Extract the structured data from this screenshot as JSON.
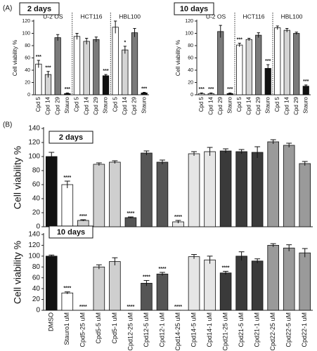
{
  "panels": [
    "(A)",
    "(B)"
  ],
  "chart_data": [
    {
      "type": "bar",
      "title": "2 days",
      "y_label": "Cell viability %",
      "groups": [
        "U-2 OS",
        "HCT116",
        "HBL100"
      ],
      "categories": [
        "Cpd 5",
        "Cpd 14",
        "Cpd 29",
        "Stauro",
        "Cpd 5",
        "Cpd 14",
        "Cpd 29",
        "Stauro",
        "Cpd 5",
        "Cpd 14",
        "Cpd 29",
        "Stauro"
      ],
      "values": [
        50,
        33,
        93,
        2,
        95,
        87,
        90,
        31,
        110,
        73,
        101,
        3
      ],
      "errors": [
        6,
        5,
        5,
        1,
        5,
        5,
        4,
        2,
        10,
        6,
        7,
        1
      ],
      "significance": [
        "***",
        "***",
        null,
        "***",
        null,
        null,
        null,
        "***",
        null,
        "*",
        null,
        "***"
      ],
      "colors": [
        "#ffffff",
        "#d4d4d4",
        "#7a7a7a",
        "#111111",
        "#ffffff",
        "#d4d4d4",
        "#7a7a7a",
        "#111111",
        "#ffffff",
        "#d4d4d4",
        "#7a7a7a",
        "#111111"
      ],
      "ylim": [
        0,
        120
      ],
      "yticks": [
        0,
        20,
        40,
        60,
        80,
        100,
        120
      ]
    },
    {
      "type": "bar",
      "title": "10 days",
      "y_label": "Cell viability %",
      "groups": [
        "U-2 OS",
        "HCT116",
        "HBL100"
      ],
      "categories": [
        "Cpd 5",
        "Cpd 14",
        "Cpd 29",
        "Stauro",
        "Cpd 5",
        "Cpd 14",
        "Cpd 29",
        "Stauro",
        "Cpd 5",
        "Cpd 14",
        "Cpd 29",
        "Stauro"
      ],
      "values": [
        2,
        2,
        103,
        2,
        81,
        90,
        97,
        43,
        109,
        105,
        100,
        14
      ],
      "errors": [
        1,
        1,
        10,
        1,
        3,
        2,
        4,
        6,
        3,
        3,
        2,
        2
      ],
      "significance": [
        "***",
        "***",
        null,
        "***",
        "***",
        null,
        null,
        "***",
        null,
        null,
        null,
        "***"
      ],
      "colors": [
        "#ffffff",
        "#d4d4d4",
        "#7a7a7a",
        "#111111",
        "#ffffff",
        "#d4d4d4",
        "#7a7a7a",
        "#111111",
        "#ffffff",
        "#d4d4d4",
        "#7a7a7a",
        "#111111"
      ],
      "ylim": [
        0,
        120
      ],
      "yticks": [
        0,
        20,
        40,
        60,
        80,
        100,
        120
      ]
    },
    {
      "type": "bar",
      "title": "2 days",
      "y_label": "Cell viability %",
      "values": [
        100,
        60,
        9,
        89,
        92,
        13,
        105,
        92,
        7,
        104,
        107,
        108,
        107,
        106,
        121,
        116,
        90
      ],
      "errors": [
        6,
        5,
        1,
        2,
        2,
        1,
        3,
        3,
        2,
        3,
        6,
        3,
        3,
        8,
        3,
        3,
        3
      ],
      "significance": [
        null,
        "****",
        "****",
        null,
        null,
        "****",
        null,
        null,
        "****",
        null,
        null,
        null,
        null,
        null,
        null,
        null,
        null
      ],
      "colors": [
        "#111111",
        "#ffffff",
        "#cfcfcf",
        "#cfcfcf",
        "#cfcfcf",
        "#555555",
        "#555555",
        "#555555",
        "#e6e6e6",
        "#e6e6e6",
        "#e6e6e6",
        "#3a3a3a",
        "#3a3a3a",
        "#3a3a3a",
        "#9a9a9a",
        "#9a9a9a",
        "#9a9a9a"
      ],
      "ylim": [
        0,
        140
      ],
      "yticks": [
        0,
        20,
        40,
        60,
        80,
        100,
        120,
        140
      ]
    },
    {
      "type": "bar",
      "title": "10 days",
      "y_label": "Cell viability %",
      "categories": [
        "DMSO",
        "Stauro1 uM",
        "Cpd5-25 uM",
        "Cpd5-5 uM",
        "Cpd5-1 uM",
        "Cpd12-25 uM",
        "Cpd12-5 uM",
        "Cpd12-1 uM",
        "Cpd14-25 uM",
        "Cpd14-5 uM",
        "Cpd14-1 uM",
        "Cpd21-25 uM",
        "Cpd21-5 uM",
        "Cpd21-1 uM",
        "Cpd22-25 uM",
        "Cpd22-5 uM",
        "Cpd22-1 uM"
      ],
      "values": [
        100,
        32,
        0,
        80,
        90,
        0,
        50,
        67,
        0,
        99,
        93,
        69,
        100,
        91,
        120,
        115,
        106
      ],
      "errors": [
        2,
        2,
        0,
        4,
        7,
        0,
        5,
        3,
        0,
        4,
        7,
        3,
        8,
        4,
        3,
        6,
        8
      ],
      "significance": [
        null,
        "****",
        "****",
        null,
        null,
        "****",
        "****",
        "****",
        "****",
        null,
        null,
        "****",
        null,
        null,
        null,
        null,
        null
      ],
      "colors": [
        "#111111",
        "#ffffff",
        "#cfcfcf",
        "#cfcfcf",
        "#cfcfcf",
        "#555555",
        "#555555",
        "#555555",
        "#e6e6e6",
        "#e6e6e6",
        "#e6e6e6",
        "#3a3a3a",
        "#3a3a3a",
        "#3a3a3a",
        "#9a9a9a",
        "#9a9a9a",
        "#9a9a9a"
      ],
      "ylim": [
        0,
        140
      ],
      "yticks": [
        0,
        20,
        40,
        60,
        80,
        100,
        120,
        140
      ]
    }
  ]
}
